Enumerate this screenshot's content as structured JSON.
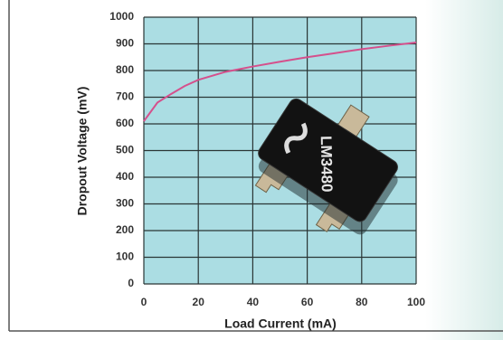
{
  "chart_data": {
    "type": "line",
    "x_label": "Load Current  (mA)",
    "y_label": "Dropout Voltage (mV)",
    "x": [
      0,
      5,
      10,
      15,
      20,
      30,
      40,
      50,
      60,
      70,
      80,
      90,
      100
    ],
    "series": [
      {
        "color": "#d5508c",
        "values": [
          610,
          680,
          712,
          742,
          765,
          795,
          815,
          833,
          850,
          865,
          880,
          893,
          905
        ]
      }
    ],
    "xlim": [
      0,
      100
    ],
    "xticks": [
      0,
      20,
      40,
      60,
      80,
      100
    ],
    "ylim": [
      0,
      1000
    ],
    "yticks": [
      0,
      100,
      200,
      300,
      400,
      500,
      600,
      700,
      800,
      900,
      1000
    ],
    "grid": true,
    "plot_color": "#abdde3",
    "annotation": "LM3480"
  }
}
